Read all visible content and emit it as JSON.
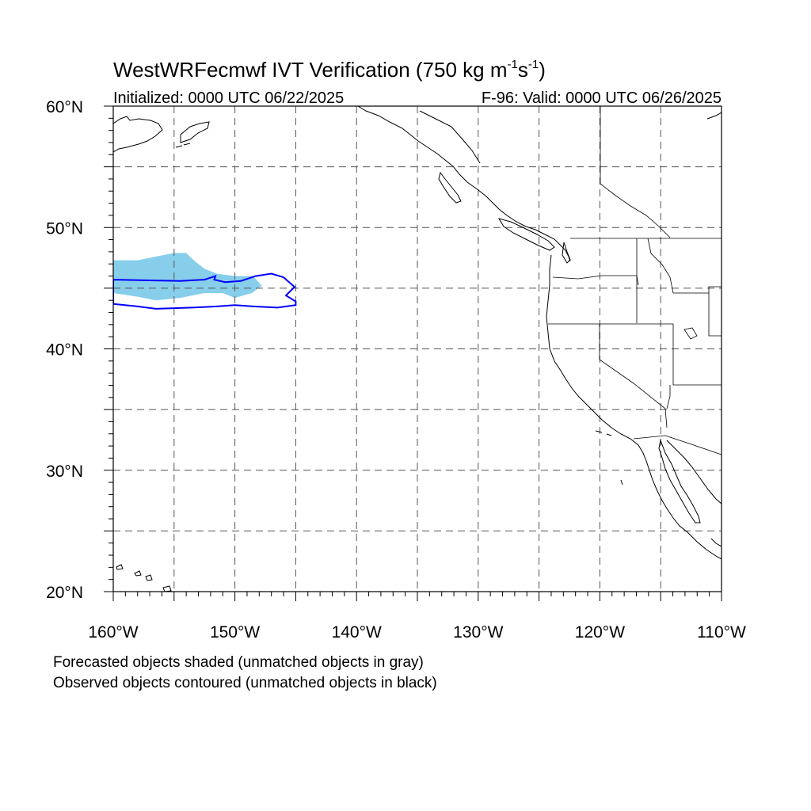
{
  "title": {
    "main": "WestWRFecmwf IVT Verification (750 kg m",
    "sup1": "-1",
    "mid": "s",
    "sup2": "-1",
    "end": ")"
  },
  "subtitle_left": "Initialized: 0000 UTC 06/22/2025",
  "subtitle_right": "F-96: Valid: 0000 UTC 06/26/2025",
  "axes": {
    "lon_range": [
      -160,
      -110
    ],
    "lat_range": [
      20,
      60
    ],
    "x_ticks": [
      {
        "value": -160,
        "label": "160°W"
      },
      {
        "value": -150,
        "label": "150°W"
      },
      {
        "value": -140,
        "label": "140°W"
      },
      {
        "value": -130,
        "label": "130°W"
      },
      {
        "value": -120,
        "label": "120°W"
      },
      {
        "value": -110,
        "label": "110°W"
      }
    ],
    "y_ticks": [
      {
        "value": 60,
        "label": "60°N"
      },
      {
        "value": 50,
        "label": "50°N"
      },
      {
        "value": 40,
        "label": "40°N"
      },
      {
        "value": 30,
        "label": "30°N"
      },
      {
        "value": 20,
        "label": "20°N"
      }
    ],
    "grid_lon": [
      -155,
      -150,
      -145,
      -140,
      -135,
      -130,
      -125,
      -120,
      -115
    ],
    "grid_lat": [
      55,
      50,
      45,
      40,
      35,
      30,
      25
    ]
  },
  "colors": {
    "forecast_shade": "#87ceeb",
    "observed_contour": "#0000ff",
    "coast": "#000000",
    "grid": "#555555"
  },
  "legend": {
    "line1": "Forecasted objects shaded (unmatched objects in gray)",
    "line2": "Observed objects contoured (unmatched objects in black)"
  },
  "chart_data": {
    "type": "map",
    "forecast_object": [
      [
        -160,
        47.3
      ],
      [
        -158,
        47.3
      ],
      [
        -156.5,
        47.6
      ],
      [
        -155,
        47.9
      ],
      [
        -154,
        47.9
      ],
      [
        -153.5,
        47.4
      ],
      [
        -152.5,
        46.6
      ],
      [
        -151.5,
        46.2
      ],
      [
        -150,
        46.0
      ],
      [
        -148.5,
        46.0
      ],
      [
        -147.8,
        45.2
      ],
      [
        -148.6,
        44.6
      ],
      [
        -150,
        44.2
      ],
      [
        -151,
        44.6
      ],
      [
        -152.5,
        44.6
      ],
      [
        -154.5,
        44.2
      ],
      [
        -156.5,
        44.0
      ],
      [
        -158,
        44.3
      ],
      [
        -160,
        44.6
      ]
    ],
    "observed_object": [
      [
        -160,
        45.7
      ],
      [
        -154.5,
        45.6
      ],
      [
        -152.5,
        45.7
      ],
      [
        -151.6,
        46.0
      ],
      [
        -151.7,
        45.7
      ],
      [
        -150.8,
        45.5
      ],
      [
        -149.5,
        45.6
      ],
      [
        -148.3,
        46.0
      ],
      [
        -147,
        46.2
      ],
      [
        -146,
        45.9
      ],
      [
        -145.1,
        45.1
      ],
      [
        -145.8,
        44.4
      ],
      [
        -145,
        43.9
      ],
      [
        -145,
        43.6
      ],
      [
        -146.5,
        43.4
      ],
      [
        -148.5,
        43.5
      ],
      [
        -150,
        43.6
      ],
      [
        -151.5,
        43.5
      ],
      [
        -153.5,
        43.4
      ],
      [
        -156.5,
        43.3
      ],
      [
        -158,
        43.5
      ],
      [
        -160,
        43.7
      ]
    ]
  }
}
